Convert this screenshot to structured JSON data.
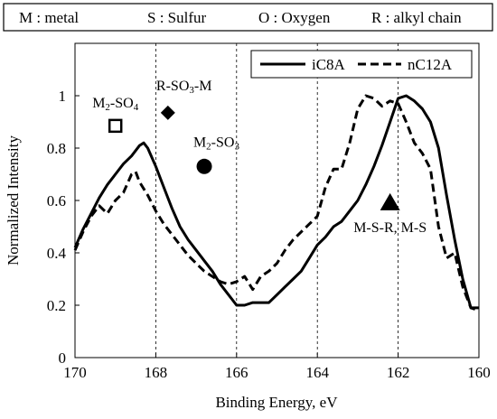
{
  "key_box": {
    "items": [
      "M : metal",
      "S : Sulfur",
      "O :  Oxygen",
      "R : alkyl chain"
    ]
  },
  "chart_data": {
    "type": "line",
    "xlabel": "Binding Energy, eV",
    "ylabel": "Normalized Intensity",
    "xlim": [
      170,
      160
    ],
    "ylim": [
      0,
      1.2
    ],
    "x_reversed": true,
    "x_ticks": [
      "170",
      "168",
      "166",
      "164",
      "162",
      "160"
    ],
    "y_ticks": [
      "0",
      "0.2",
      "0.4",
      "0.6",
      "0.8",
      "1"
    ],
    "gridlines_x": [
      168,
      166,
      164,
      162
    ],
    "grid_style": "vertical dashed",
    "legend": {
      "position": "top-right"
    },
    "series": [
      {
        "name": "iC8A",
        "style": "solid",
        "points": [
          [
            170,
            0.42
          ],
          [
            169.8,
            0.49
          ],
          [
            169.6,
            0.55
          ],
          [
            169.4,
            0.61
          ],
          [
            169.2,
            0.66
          ],
          [
            169.0,
            0.7
          ],
          [
            168.8,
            0.74
          ],
          [
            168.6,
            0.77
          ],
          [
            168.4,
            0.81
          ],
          [
            168.3,
            0.82
          ],
          [
            168.2,
            0.8
          ],
          [
            168.0,
            0.73
          ],
          [
            167.8,
            0.65
          ],
          [
            167.6,
            0.57
          ],
          [
            167.4,
            0.5
          ],
          [
            167.2,
            0.45
          ],
          [
            167.0,
            0.41
          ],
          [
            166.8,
            0.37
          ],
          [
            166.6,
            0.33
          ],
          [
            166.4,
            0.28
          ],
          [
            166.2,
            0.24
          ],
          [
            166.0,
            0.2
          ],
          [
            165.8,
            0.2
          ],
          [
            165.6,
            0.21
          ],
          [
            165.4,
            0.21
          ],
          [
            165.2,
            0.21
          ],
          [
            165.0,
            0.24
          ],
          [
            164.8,
            0.27
          ],
          [
            164.6,
            0.3
          ],
          [
            164.4,
            0.33
          ],
          [
            164.2,
            0.38
          ],
          [
            164.0,
            0.43
          ],
          [
            163.8,
            0.46
          ],
          [
            163.6,
            0.5
          ],
          [
            163.4,
            0.52
          ],
          [
            163.2,
            0.56
          ],
          [
            163.0,
            0.6
          ],
          [
            162.8,
            0.66
          ],
          [
            162.6,
            0.73
          ],
          [
            162.4,
            0.81
          ],
          [
            162.2,
            0.9
          ],
          [
            162.0,
            0.99
          ],
          [
            161.8,
            1.0
          ],
          [
            161.6,
            0.98
          ],
          [
            161.4,
            0.95
          ],
          [
            161.2,
            0.9
          ],
          [
            161.0,
            0.8
          ],
          [
            160.8,
            0.62
          ],
          [
            160.6,
            0.45
          ],
          [
            160.4,
            0.3
          ],
          [
            160.2,
            0.19
          ],
          [
            160.0,
            0.19
          ]
        ]
      },
      {
        "name": "nC12A",
        "style": "dashed",
        "points": [
          [
            170,
            0.41
          ],
          [
            169.8,
            0.48
          ],
          [
            169.6,
            0.54
          ],
          [
            169.4,
            0.58
          ],
          [
            169.2,
            0.55
          ],
          [
            169.0,
            0.6
          ],
          [
            168.8,
            0.63
          ],
          [
            168.6,
            0.7
          ],
          [
            168.5,
            0.71
          ],
          [
            168.4,
            0.67
          ],
          [
            168.2,
            0.62
          ],
          [
            168.0,
            0.56
          ],
          [
            167.8,
            0.51
          ],
          [
            167.6,
            0.47
          ],
          [
            167.4,
            0.43
          ],
          [
            167.2,
            0.39
          ],
          [
            167.0,
            0.36
          ],
          [
            166.8,
            0.33
          ],
          [
            166.6,
            0.31
          ],
          [
            166.4,
            0.29
          ],
          [
            166.2,
            0.28
          ],
          [
            166.0,
            0.29
          ],
          [
            165.8,
            0.31
          ],
          [
            165.6,
            0.26
          ],
          [
            165.4,
            0.31
          ],
          [
            165.2,
            0.33
          ],
          [
            165.0,
            0.36
          ],
          [
            164.8,
            0.41
          ],
          [
            164.6,
            0.45
          ],
          [
            164.4,
            0.48
          ],
          [
            164.2,
            0.51
          ],
          [
            164.0,
            0.54
          ],
          [
            163.8,
            0.65
          ],
          [
            163.6,
            0.72
          ],
          [
            163.4,
            0.72
          ],
          [
            163.2,
            0.82
          ],
          [
            163.0,
            0.95
          ],
          [
            162.8,
            1.0
          ],
          [
            162.6,
            0.99
          ],
          [
            162.4,
            0.96
          ],
          [
            162.2,
            0.98
          ],
          [
            162.0,
            0.97
          ],
          [
            161.8,
            0.9
          ],
          [
            161.6,
            0.82
          ],
          [
            161.4,
            0.78
          ],
          [
            161.2,
            0.72
          ],
          [
            161.0,
            0.5
          ],
          [
            160.8,
            0.38
          ],
          [
            160.6,
            0.4
          ],
          [
            160.4,
            0.27
          ],
          [
            160.2,
            0.19
          ],
          [
            160.0,
            0.18
          ]
        ]
      }
    ],
    "annotations": [
      {
        "label_parts": [
          "M",
          "2",
          "-SO",
          "4"
        ],
        "marker": "open-square",
        "marker_at": [
          169.0,
          0.885
        ],
        "label_at": [
          169.0,
          0.955
        ]
      },
      {
        "label_parts": [
          "R-SO",
          "3",
          "-M"
        ],
        "marker": "filled-diamond",
        "marker_at": [
          167.7,
          0.935
        ],
        "label_at": [
          167.3,
          1.02
        ]
      },
      {
        "label_parts": [
          "M",
          "2",
          "-SO",
          "3"
        ],
        "marker": "filled-circle",
        "marker_at": [
          166.8,
          0.73
        ],
        "label_at": [
          166.5,
          0.805
        ]
      },
      {
        "label_parts": [
          "M-S-R,  M-S"
        ],
        "marker": "filled-triangle",
        "marker_at": [
          162.2,
          0.59
        ],
        "label_at": [
          162.2,
          0.48
        ]
      }
    ]
  }
}
